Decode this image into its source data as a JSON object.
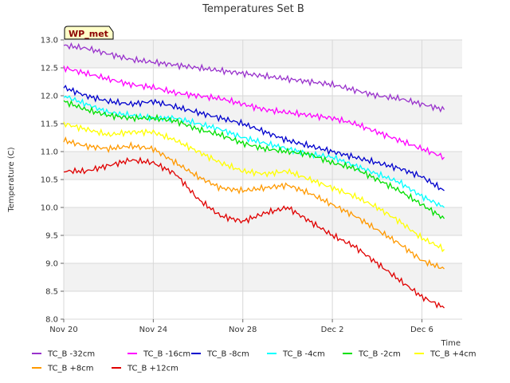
{
  "chart_data": {
    "type": "line",
    "title": "Temperatures Set B",
    "xlabel": "Time",
    "ylabel": "Temperature (C)",
    "badge": "WP_met",
    "ylim": [
      8.0,
      13.0
    ],
    "xlim": [
      0,
      17.8
    ],
    "yticks": [
      "8.0",
      "8.5",
      "9.0",
      "9.5",
      "10.0",
      "10.5",
      "11.0",
      "11.5",
      "12.0",
      "12.5",
      "13.0"
    ],
    "xticks": [
      {
        "label": "Nov 20",
        "day": 0
      },
      {
        "label": "Nov 24",
        "day": 4
      },
      {
        "label": "Nov 28",
        "day": 8
      },
      {
        "label": "Dec 2",
        "day": 12
      },
      {
        "label": "Dec 6",
        "day": 16
      }
    ],
    "grid": true,
    "legend_position": "bottom",
    "series": [
      {
        "name": "TC_B -32cm",
        "color": "#9932cc",
        "x": [
          0,
          1,
          2,
          3,
          4,
          5,
          6,
          7,
          8,
          9,
          10,
          11,
          12,
          13,
          14,
          15,
          16,
          17
        ],
        "y": [
          12.9,
          12.85,
          12.75,
          12.65,
          12.6,
          12.55,
          12.5,
          12.45,
          12.4,
          12.35,
          12.3,
          12.25,
          12.2,
          12.1,
          12.0,
          11.95,
          11.85,
          11.75
        ]
      },
      {
        "name": "TC_B -16cm",
        "color": "#ff00ff",
        "x": [
          0,
          1,
          2,
          3,
          4,
          5,
          6,
          7,
          8,
          9,
          10,
          11,
          12,
          13,
          14,
          15,
          16,
          17
        ],
        "y": [
          12.5,
          12.4,
          12.3,
          12.2,
          12.15,
          12.05,
          12.0,
          11.95,
          11.85,
          11.75,
          11.7,
          11.65,
          11.6,
          11.5,
          11.35,
          11.2,
          11.05,
          10.9
        ]
      },
      {
        "name": "TC_B -8cm",
        "color": "#0000cd",
        "x": [
          0,
          1,
          2,
          3,
          4,
          5,
          6,
          7,
          8,
          9,
          10,
          11,
          12,
          13,
          14,
          15,
          16,
          17
        ],
        "y": [
          12.15,
          12.0,
          11.9,
          11.85,
          11.9,
          11.8,
          11.7,
          11.6,
          11.5,
          11.35,
          11.2,
          11.1,
          11.0,
          10.9,
          10.8,
          10.7,
          10.55,
          10.3
        ]
      },
      {
        "name": "TC_B -4cm",
        "color": "#00ffff",
        "x": [
          0,
          1,
          2,
          3,
          4,
          5,
          6,
          7,
          8,
          9,
          10,
          11,
          12,
          13,
          14,
          15,
          16,
          17
        ],
        "y": [
          12.0,
          11.85,
          11.7,
          11.65,
          11.6,
          11.6,
          11.5,
          11.4,
          11.25,
          11.15,
          11.05,
          10.95,
          10.9,
          10.75,
          10.6,
          10.45,
          10.2,
          10.0
        ]
      },
      {
        "name": "TC_B -2cm",
        "color": "#00e000",
        "x": [
          0,
          1,
          2,
          3,
          4,
          5,
          6,
          7,
          8,
          9,
          10,
          11,
          12,
          13,
          14,
          15,
          16,
          17
        ],
        "y": [
          11.9,
          11.75,
          11.65,
          11.6,
          11.6,
          11.55,
          11.4,
          11.3,
          11.15,
          11.05,
          11.0,
          10.95,
          10.8,
          10.7,
          10.5,
          10.3,
          10.05,
          9.8
        ]
      },
      {
        "name": "TC_B +4cm",
        "color": "#ffff00",
        "x": [
          0,
          1,
          2,
          3,
          4,
          5,
          6,
          7,
          8,
          9,
          10,
          11,
          12,
          13,
          14,
          15,
          16,
          17
        ],
        "y": [
          11.5,
          11.4,
          11.3,
          11.35,
          11.35,
          11.2,
          11.0,
          10.8,
          10.65,
          10.6,
          10.65,
          10.5,
          10.35,
          10.2,
          10.0,
          9.75,
          9.45,
          9.25
        ]
      },
      {
        "name": "TC_B +8cm",
        "color": "#ff9900",
        "x": [
          0,
          1,
          2,
          3,
          4,
          5,
          6,
          7,
          8,
          9,
          10,
          11,
          12,
          13,
          14,
          15,
          16,
          17
        ],
        "y": [
          11.2,
          11.1,
          11.05,
          11.1,
          11.05,
          10.8,
          10.55,
          10.35,
          10.3,
          10.35,
          10.4,
          10.25,
          10.05,
          9.85,
          9.6,
          9.35,
          9.05,
          8.9
        ]
      },
      {
        "name": "TC_B +12cm",
        "color": "#e00000",
        "x": [
          0,
          1,
          2,
          3,
          4,
          5,
          6,
          7,
          8,
          9,
          10,
          11,
          12,
          13,
          14,
          15,
          16,
          17
        ],
        "y": [
          10.65,
          10.65,
          10.75,
          10.85,
          10.8,
          10.6,
          10.15,
          9.85,
          9.75,
          9.9,
          10.0,
          9.75,
          9.5,
          9.3,
          9.0,
          8.7,
          8.4,
          8.2
        ]
      }
    ]
  }
}
